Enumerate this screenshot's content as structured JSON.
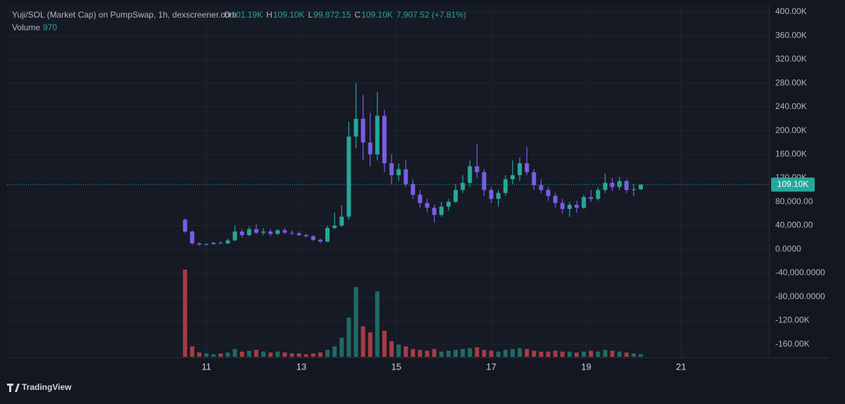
{
  "chart_data": {
    "type": "candlestick",
    "header": {
      "title": "Yuji/SOL (Market Cap) on PumpSwap, 1h, dexscreener.com",
      "ohlc": [
        {
          "key": "O",
          "value": "101.19K"
        },
        {
          "key": "H",
          "value": "109.10K"
        },
        {
          "key": "L",
          "value": "99,872.15"
        },
        {
          "key": "C",
          "value": "109.10K"
        }
      ],
      "change": "7,907.52 (+7.81%)",
      "volume_label": "Volume",
      "volume_value": "970"
    },
    "x": [
      10.55,
      10.7,
      10.85,
      11.0,
      11.15,
      11.3,
      11.45,
      11.6,
      11.75,
      11.9,
      12.05,
      12.2,
      12.35,
      12.5,
      12.65,
      12.8,
      12.95,
      13.1,
      13.25,
      13.4,
      13.55,
      13.7,
      13.85,
      14.0,
      14.15,
      14.3,
      14.45,
      14.6,
      14.75,
      14.9,
      15.05,
      15.2,
      15.35,
      15.5,
      15.65,
      15.8,
      15.95,
      16.1,
      16.25,
      16.4,
      16.55,
      16.7,
      16.85,
      17.0,
      17.15,
      17.3,
      17.45,
      17.6,
      17.75,
      17.9,
      18.05,
      18.2,
      18.35,
      18.5,
      18.65,
      18.8,
      18.95,
      19.1,
      19.25,
      19.4,
      19.55,
      19.7,
      19.85,
      20.0,
      20.15
    ],
    "open": [
      50000,
      30000,
      10000,
      8000,
      9000,
      11000,
      10000,
      15000,
      30000,
      24000,
      34000,
      28000,
      30000,
      26000,
      32000,
      28000,
      27000,
      24000,
      22000,
      16000,
      13000,
      36000,
      40000,
      55000,
      190000,
      220000,
      180000,
      160000,
      225000,
      145000,
      125000,
      135000,
      110000,
      92000,
      78000,
      70000,
      58000,
      72000,
      80000,
      100000,
      112000,
      140000,
      130000,
      100000,
      85000,
      95000,
      118000,
      125000,
      145000,
      130000,
      108000,
      100000,
      90000,
      78000,
      68000,
      75000,
      70000,
      88000,
      85000,
      100000,
      112000,
      105000,
      115000,
      100000,
      101190
    ],
    "high": [
      52000,
      32000,
      12000,
      10000,
      12000,
      14000,
      18000,
      40000,
      34000,
      38000,
      42000,
      36000,
      34000,
      34000,
      36000,
      32000,
      30000,
      26000,
      24000,
      18000,
      40000,
      62000,
      75000,
      215000,
      280000,
      260000,
      230000,
      265000,
      235000,
      160000,
      145000,
      150000,
      118000,
      100000,
      85000,
      75000,
      80000,
      85000,
      110000,
      125000,
      150000,
      178000,
      135000,
      105000,
      100000,
      125000,
      150000,
      155000,
      172000,
      135000,
      118000,
      105000,
      95000,
      85000,
      80000,
      82000,
      92000,
      100000,
      105000,
      128000,
      120000,
      122000,
      118000,
      110000,
      109100
    ],
    "low": [
      28000,
      8000,
      6000,
      6000,
      8000,
      9000,
      9000,
      14000,
      20000,
      22000,
      26000,
      24000,
      22000,
      24000,
      26000,
      24000,
      22000,
      20000,
      14000,
      11000,
      12000,
      34000,
      38000,
      50000,
      170000,
      150000,
      140000,
      150000,
      130000,
      110000,
      115000,
      105000,
      85000,
      70000,
      62000,
      45000,
      55000,
      65000,
      78000,
      95000,
      105000,
      120000,
      90000,
      78000,
      72000,
      90000,
      110000,
      115000,
      125000,
      100000,
      95000,
      82000,
      70000,
      60000,
      55000,
      62000,
      68000,
      80000,
      82000,
      95000,
      98000,
      100000,
      95000,
      90000,
      99872.15
    ],
    "close": [
      30000,
      10000,
      8000,
      9000,
      11000,
      10000,
      15000,
      30000,
      24000,
      34000,
      28000,
      30000,
      26000,
      32000,
      28000,
      27000,
      24000,
      22000,
      16000,
      13000,
      36000,
      40000,
      55000,
      190000,
      220000,
      180000,
      160000,
      225000,
      145000,
      125000,
      135000,
      110000,
      92000,
      78000,
      70000,
      58000,
      72000,
      80000,
      100000,
      112000,
      140000,
      130000,
      100000,
      85000,
      95000,
      118000,
      125000,
      145000,
      130000,
      108000,
      100000,
      90000,
      78000,
      68000,
      75000,
      70000,
      88000,
      85000,
      100000,
      112000,
      105000,
      115000,
      100000,
      101190,
      109100
    ],
    "volume": [
      100,
      12,
      5,
      4,
      3,
      4,
      5,
      9,
      6,
      7,
      8,
      6,
      5,
      6,
      5,
      4,
      4,
      3,
      4,
      5,
      8,
      12,
      22,
      45,
      80,
      35,
      28,
      75,
      30,
      18,
      14,
      12,
      9,
      8,
      7,
      9,
      6,
      7,
      8,
      9,
      10,
      11,
      8,
      7,
      6,
      8,
      9,
      10,
      9,
      7,
      6,
      6,
      7,
      6,
      6,
      5,
      6,
      7,
      6,
      8,
      7,
      6,
      5,
      4,
      3
    ],
    "up_color": "#26a69a",
    "down_color": "#7b5ce6",
    "volume_up_color": "#1f6b63",
    "volume_down_color": "#a63c46",
    "xlim": [
      6.8,
      22.85
    ],
    "xticks": [
      11,
      13,
      15,
      17,
      19,
      21
    ],
    "ylim": [
      -180000,
      400000
    ],
    "yticks": [
      {
        "value": 400000,
        "label": "400.00K"
      },
      {
        "value": 360000,
        "label": "360.00K"
      },
      {
        "value": 320000,
        "label": "320.00K"
      },
      {
        "value": 280000,
        "label": "280.00K"
      },
      {
        "value": 240000,
        "label": "240.00K"
      },
      {
        "value": 200000,
        "label": "200.00K"
      },
      {
        "value": 160000,
        "label": "160.00K"
      },
      {
        "value": 120000,
        "label": "120.00K"
      },
      {
        "value": 80000,
        "label": "80,000.00"
      },
      {
        "value": 40000,
        "label": "40,000.00"
      },
      {
        "value": 0,
        "label": "0.0000"
      },
      {
        "value": -40000,
        "label": "-40,000.0000"
      },
      {
        "value": -80000,
        "label": "-80,000.0000"
      },
      {
        "value": -120000,
        "label": "-120.00K"
      },
      {
        "value": -160000,
        "label": "-160.00K"
      }
    ],
    "last_price": {
      "value": 109100,
      "label": "109.10K"
    },
    "grid": true,
    "brand": "TradingView"
  }
}
